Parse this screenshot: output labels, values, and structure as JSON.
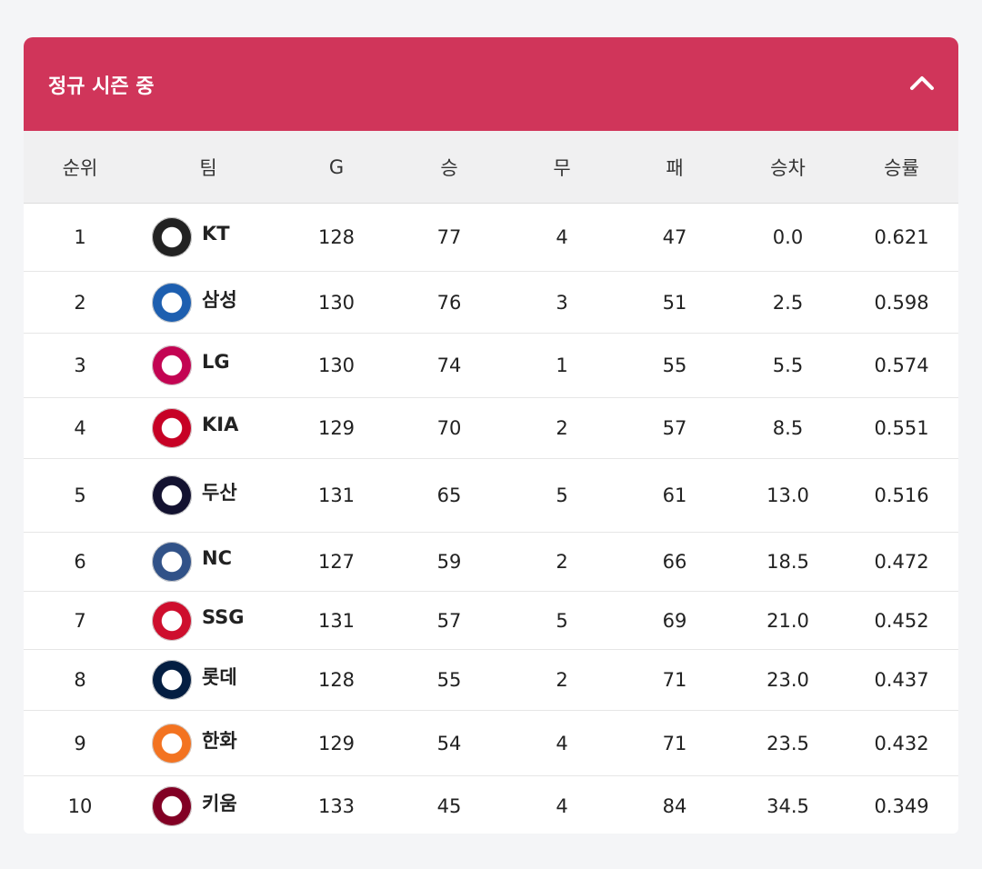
{
  "header": {
    "title": "정규 시즌 중"
  },
  "table": {
    "columns": [
      "순위",
      "팀",
      "G",
      "승",
      "무",
      "패",
      "승차",
      "승률"
    ],
    "rows": [
      [
        1,
        "KT",
        128,
        77,
        4,
        47,
        "0.0",
        "0.621"
      ],
      [
        2,
        "삼성",
        130,
        76,
        3,
        51,
        "2.5",
        "0.598"
      ],
      [
        3,
        "LG",
        130,
        74,
        1,
        55,
        "5.5",
        "0.574"
      ],
      [
        4,
        "KIA",
        129,
        70,
        2,
        57,
        "8.5",
        "0.551"
      ],
      [
        5,
        "두산",
        131,
        65,
        5,
        61,
        "13.0",
        "0.516"
      ],
      [
        6,
        "NC",
        127,
        59,
        2,
        66,
        "18.5",
        "0.472"
      ],
      [
        7,
        "SSG",
        131,
        57,
        5,
        69,
        "21.0",
        "0.452"
      ],
      [
        8,
        "롯데",
        128,
        55,
        2,
        71,
        "23.0",
        "0.437"
      ],
      [
        9,
        "한화",
        129,
        54,
        4,
        71,
        "23.5",
        "0.432"
      ],
      [
        10,
        "키움",
        133,
        45,
        4,
        84,
        "34.5",
        "0.349"
      ]
    ]
  }
}
